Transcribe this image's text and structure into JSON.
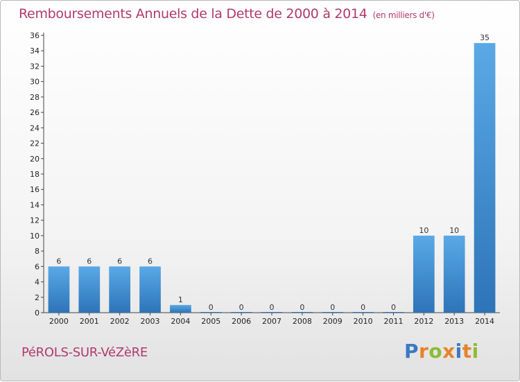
{
  "title": "Remboursements Annuels de la Dette de 2000 à 2014",
  "title_unit": "(en milliers d'€)",
  "commune": "PéROLS-SUR-VéZèRE",
  "logo": {
    "letters": [
      "P",
      "r",
      "o",
      "x",
      "i",
      "t",
      "i"
    ],
    "colors": [
      "#3a79c4",
      "#e8822a",
      "#8dbb35",
      "#e8822a",
      "#3a79c4",
      "#e8822a",
      "#8dbb35"
    ]
  },
  "colors": {
    "bar_light": "#5aa9e6",
    "bar_dark": "#2d74b8",
    "title": "#b03a6a"
  },
  "chart_data": {
    "type": "bar",
    "title": "Remboursements Annuels de la Dette de 2000 à 2014",
    "ylabel": "",
    "xlabel": "",
    "categories": [
      "2000",
      "2001",
      "2002",
      "2003",
      "2004",
      "2005",
      "2006",
      "2007",
      "2008",
      "2009",
      "2010",
      "2011",
      "2012",
      "2013",
      "2014"
    ],
    "values": [
      6,
      6,
      6,
      6,
      1,
      0,
      0,
      0,
      0,
      0,
      0,
      0,
      10,
      10,
      35
    ],
    "ylim": [
      0,
      36
    ],
    "yticks": [
      0,
      2,
      4,
      6,
      8,
      10,
      12,
      14,
      16,
      18,
      20,
      22,
      24,
      26,
      28,
      30,
      32,
      34,
      36
    ],
    "grid": false,
    "legend": "none"
  }
}
